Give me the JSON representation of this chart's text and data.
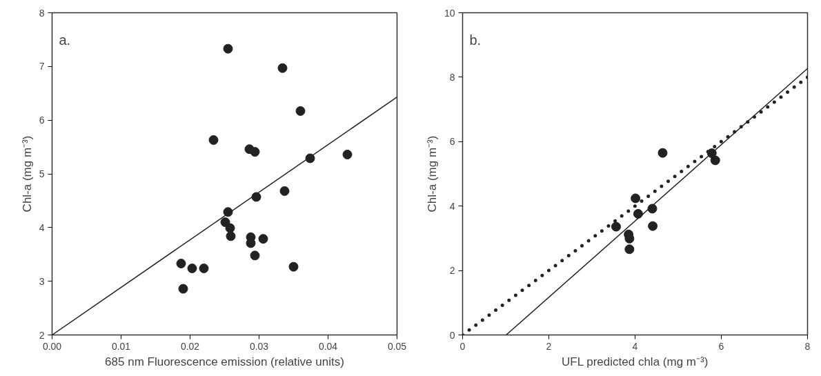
{
  "chart_data": [
    {
      "type": "scatter",
      "xlabel": "685 nm Fluorescence emission (relative units)",
      "ylabel": "Chl-a (mg m⁻³)",
      "annotations": [
        "a."
      ],
      "xlim": [
        0,
        0.05
      ],
      "ylim": [
        2,
        8
      ],
      "xticks": [
        {
          "value": 0,
          "label": "0.00"
        },
        {
          "value": 0.01,
          "label": "0.01"
        },
        {
          "value": 0.02,
          "label": "0.02"
        },
        {
          "value": 0.03,
          "label": "0.03"
        },
        {
          "value": 0.04,
          "label": "0.04"
        },
        {
          "value": 0.05,
          "label": "0.05"
        }
      ],
      "yticks": [
        2,
        3,
        4,
        5,
        6,
        7,
        8
      ],
      "series": [
        {
          "marker": "circle",
          "color": "#222222",
          "x": [
            0.0255,
            0.0334,
            0.036,
            0.0234,
            0.0286,
            0.0294,
            0.0374,
            0.0428,
            0.0337,
            0.0296,
            0.0255,
            0.0251,
            0.0258,
            0.0259,
            0.0288,
            0.0288,
            0.0306,
            0.0294,
            0.035,
            0.0187,
            0.0203,
            0.022,
            0.019
          ],
          "values": [
            7.33,
            6.97,
            6.17,
            5.63,
            5.46,
            5.41,
            5.29,
            5.36,
            4.68,
            4.57,
            4.29,
            4.1,
            3.99,
            3.84,
            3.82,
            3.71,
            3.79,
            3.48,
            3.27,
            3.33,
            3.24,
            3.24,
            2.86
          ]
        },
        {
          "type": "line",
          "marker": "none",
          "color": "#222222",
          "line_style": "solid",
          "x": [
            0,
            0.05
          ],
          "values": [
            2,
            6.43
          ]
        }
      ]
    },
    {
      "type": "scatter",
      "xlabel": "UFL predicted chla (mg m⁻³)",
      "ylabel": "Chl-a (mg m⁻³)",
      "annotations": [
        "b."
      ],
      "xlim": [
        0,
        8
      ],
      "ylim": [
        0,
        10
      ],
      "xticks": [
        0,
        2,
        4,
        6,
        8
      ],
      "yticks": [
        0,
        2,
        4,
        6,
        8,
        10
      ],
      "series": [
        {
          "marker": "circle",
          "color": "#222222",
          "x": [
            4.64,
            5.78,
            5.86,
            4.01,
            4.07,
            4.4,
            3.56,
            4.41,
            3.85,
            3.87,
            3.87
          ],
          "values": [
            5.65,
            5.64,
            5.42,
            4.24,
            3.76,
            3.92,
            3.36,
            3.38,
            3.12,
            2.99,
            2.66
          ]
        },
        {
          "type": "line",
          "marker": "none",
          "color": "#222222",
          "line_style": "solid",
          "x": [
            1.01,
            8
          ],
          "values": [
            0,
            8.27
          ]
        },
        {
          "type": "line",
          "marker": "none",
          "color": "#222222",
          "line_style": "dotted",
          "x": [
            0,
            8
          ],
          "values": [
            0,
            8
          ]
        }
      ]
    }
  ]
}
